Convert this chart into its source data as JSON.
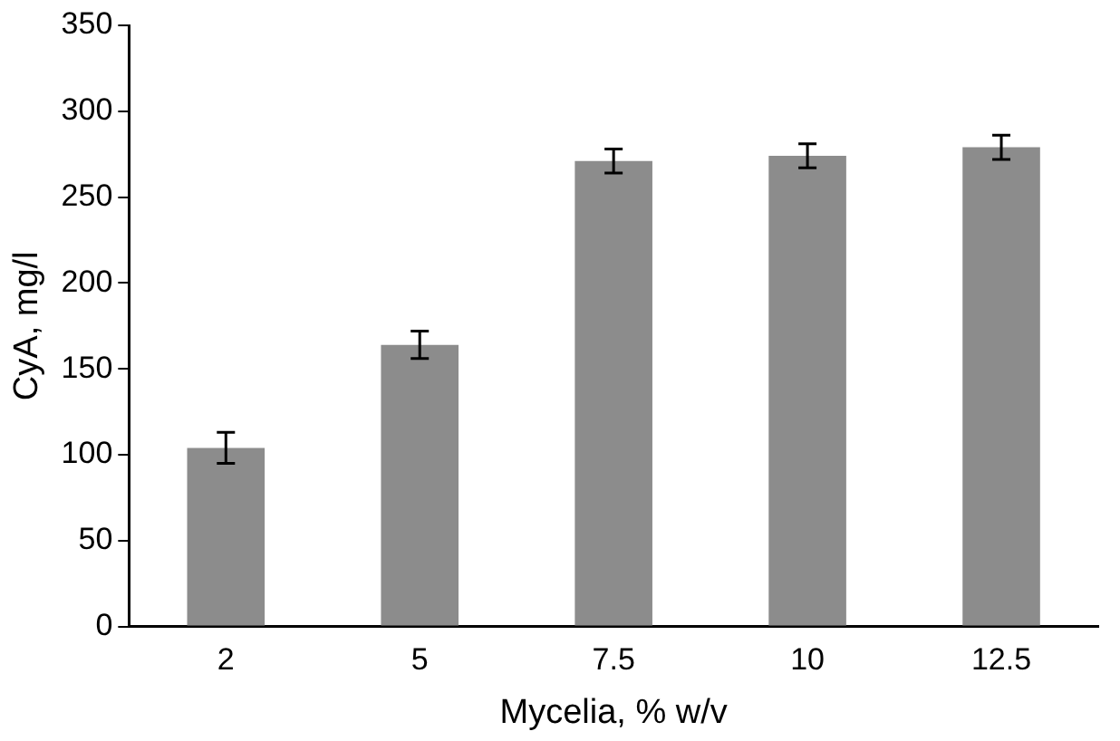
{
  "chart_data": {
    "type": "bar",
    "xlabel": "Mycelia, % w/v",
    "ylabel": "CyA, mg/l",
    "categories": [
      "2",
      "5",
      "7.5",
      "10",
      "12.5"
    ],
    "values": [
      104,
      164,
      271,
      274,
      279
    ],
    "errors": [
      9,
      8,
      7,
      7,
      7
    ],
    "color": "#8c8c8c",
    "ylim": [
      0,
      350
    ],
    "yticks": [
      0,
      50,
      100,
      150,
      200,
      250,
      300,
      350
    ],
    "grid": false
  }
}
